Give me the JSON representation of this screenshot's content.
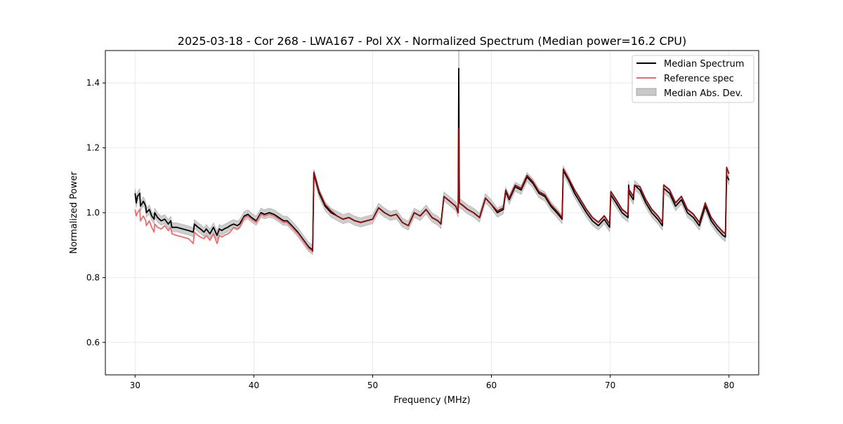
{
  "chart_data": {
    "type": "line",
    "title": "2025-03-18 - Cor 268 - LWA167 - Pol XX - Normalized Spectrum (Median power=16.2 CPU)",
    "xlabel": "Frequency (MHz)",
    "ylabel": "Normalized Power",
    "xlim": [
      27.5,
      82.5
    ],
    "ylim": [
      0.5,
      1.5
    ],
    "xticks": [
      30,
      40,
      50,
      60,
      70,
      80
    ],
    "xtick_labels": [
      "30",
      "40",
      "50",
      "60",
      "70",
      "80"
    ],
    "yticks": [
      0.6,
      0.8,
      1.0,
      1.2,
      1.4
    ],
    "ytick_labels": [
      "0.6",
      "0.8",
      "1.0",
      "1.2",
      "1.4"
    ],
    "grid": true,
    "legend_position": "top-right",
    "colors": {
      "median": "#000000",
      "reference": "#f26a6a",
      "mad": "#c8c8c8",
      "overlap": "#8b0d0d"
    },
    "series": [
      {
        "name": "Median Spectrum",
        "x": [
          30.0,
          30.1,
          30.2,
          30.4,
          30.45,
          30.7,
          30.9,
          30.95,
          31.2,
          31.4,
          31.6,
          31.65,
          31.9,
          32.2,
          32.5,
          32.8,
          33.0,
          33.1,
          33.5,
          34.0,
          34.5,
          34.9,
          35.0,
          35.3,
          35.5,
          35.8,
          36.0,
          36.3,
          36.6,
          36.9,
          37.1,
          37.3,
          37.5,
          37.8,
          38.0,
          38.3,
          38.6,
          38.8,
          39.2,
          39.5,
          39.8,
          40.2,
          40.6,
          40.9,
          41.3,
          41.7,
          42.1,
          42.5,
          42.8,
          43.2,
          43.7,
          44.2,
          44.6,
          44.95,
          45.05,
          45.5,
          46.0,
          46.5,
          47.0,
          47.5,
          48.0,
          48.5,
          49.0,
          49.5,
          50.0,
          50.5,
          51.0,
          51.5,
          52.0,
          52.5,
          53.0,
          53.5,
          54.0,
          54.5,
          55.0,
          55.5,
          55.75,
          56.0,
          56.5,
          57.0,
          57.2,
          57.25,
          57.3,
          57.5,
          58.0,
          58.5,
          59.0,
          59.5,
          60.0,
          60.5,
          61.0,
          61.2,
          61.5,
          62.0,
          62.5,
          63.0,
          63.5,
          64.0,
          64.5,
          65.0,
          65.5,
          65.95,
          66.05,
          66.5,
          67.0,
          67.5,
          68.0,
          68.5,
          69.0,
          69.5,
          69.95,
          70.05,
          70.5,
          71.0,
          71.5,
          71.55,
          71.6,
          71.95,
          72.05,
          72.5,
          73.0,
          73.5,
          74.0,
          74.4,
          74.5,
          75.0,
          75.5,
          76.0,
          76.5,
          77.0,
          77.5,
          78.0,
          78.5,
          79.0,
          79.5,
          79.7,
          79.8,
          80.0
        ],
        "values": [
          1.06,
          1.03,
          1.05,
          1.06,
          1.02,
          1.035,
          1.02,
          1.0,
          1.01,
          0.99,
          0.98,
          1.0,
          0.985,
          0.975,
          0.98,
          0.965,
          0.975,
          0.955,
          0.955,
          0.95,
          0.945,
          0.94,
          0.965,
          0.955,
          0.95,
          0.94,
          0.95,
          0.935,
          0.955,
          0.93,
          0.95,
          0.945,
          0.95,
          0.955,
          0.96,
          0.965,
          0.96,
          0.965,
          0.99,
          0.995,
          0.985,
          0.975,
          1.0,
          0.995,
          1.0,
          0.995,
          0.985,
          0.975,
          0.975,
          0.96,
          0.94,
          0.915,
          0.895,
          0.885,
          1.12,
          1.06,
          1.02,
          1.0,
          0.99,
          0.98,
          0.985,
          0.975,
          0.97,
          0.975,
          0.98,
          1.015,
          1.0,
          0.99,
          0.995,
          0.97,
          0.96,
          1.0,
          0.99,
          1.01,
          0.985,
          0.975,
          0.965,
          1.05,
          1.035,
          1.02,
          1.0,
          1.445,
          1.03,
          1.025,
          1.01,
          1.0,
          0.985,
          1.045,
          1.025,
          1.0,
          1.01,
          1.065,
          1.04,
          1.08,
          1.07,
          1.11,
          1.09,
          1.06,
          1.05,
          1.02,
          1.0,
          0.98,
          1.13,
          1.1,
          1.06,
          1.03,
          1.0,
          0.975,
          0.96,
          0.98,
          0.955,
          1.055,
          1.03,
          1.0,
          0.985,
          1.085,
          1.06,
          1.04,
          1.085,
          1.07,
          1.03,
          1.0,
          0.98,
          0.96,
          1.075,
          1.06,
          1.02,
          1.04,
          1.0,
          0.985,
          0.96,
          1.02,
          0.975,
          0.95,
          0.93,
          0.925,
          1.115,
          1.1
        ],
        "mad_width": 0.014
      },
      {
        "name": "Reference spec",
        "x": [
          30.0,
          30.1,
          30.2,
          30.4,
          30.45,
          30.7,
          30.9,
          30.95,
          31.2,
          31.4,
          31.6,
          31.65,
          31.9,
          32.2,
          32.5,
          32.8,
          33.0,
          33.1,
          33.5,
          34.0,
          34.5,
          34.9,
          35.0,
          35.3,
          35.5,
          35.8,
          36.0,
          36.3,
          36.6,
          36.9,
          37.1,
          37.3,
          37.5,
          37.8,
          38.0,
          38.3,
          38.6,
          38.8,
          39.2,
          39.5,
          39.8,
          40.2,
          40.6,
          40.9,
          41.3,
          41.7,
          42.1,
          42.5,
          42.8,
          43.2,
          43.7,
          44.2,
          44.6,
          44.95,
          45.05,
          45.5,
          46.0,
          46.5,
          47.0,
          47.5,
          48.0,
          48.5,
          49.0,
          49.5,
          50.0,
          50.5,
          51.0,
          51.5,
          52.0,
          52.5,
          53.0,
          53.5,
          54.0,
          54.5,
          55.0,
          55.5,
          55.75,
          56.0,
          56.5,
          57.0,
          57.2,
          57.25,
          57.3,
          57.5,
          58.0,
          58.5,
          59.0,
          59.5,
          60.0,
          60.5,
          61.0,
          61.2,
          61.5,
          62.0,
          62.5,
          63.0,
          63.5,
          64.0,
          64.5,
          65.0,
          65.5,
          65.95,
          66.05,
          66.5,
          67.0,
          67.5,
          68.0,
          68.5,
          69.0,
          69.5,
          69.95,
          70.05,
          70.5,
          71.0,
          71.5,
          71.55,
          71.6,
          71.95,
          72.05,
          72.5,
          73.0,
          73.5,
          74.0,
          74.4,
          74.5,
          75.0,
          75.5,
          76.0,
          76.5,
          77.0,
          77.5,
          78.0,
          78.5,
          79.0,
          79.5,
          79.7,
          79.8,
          80.0
        ],
        "values": [
          1.01,
          0.99,
          1.0,
          1.01,
          0.975,
          0.99,
          0.975,
          0.96,
          0.975,
          0.955,
          0.94,
          0.965,
          0.955,
          0.95,
          0.96,
          0.945,
          0.955,
          0.935,
          0.93,
          0.925,
          0.92,
          0.905,
          0.94,
          0.93,
          0.925,
          0.92,
          0.93,
          0.915,
          0.935,
          0.905,
          0.93,
          0.925,
          0.93,
          0.935,
          0.94,
          0.955,
          0.95,
          0.955,
          0.985,
          0.99,
          0.98,
          0.97,
          0.995,
          0.99,
          0.995,
          0.99,
          0.98,
          0.97,
          0.97,
          0.955,
          0.935,
          0.91,
          0.89,
          0.88,
          1.125,
          1.065,
          1.025,
          1.005,
          0.99,
          0.98,
          0.985,
          0.975,
          0.97,
          0.975,
          0.98,
          1.015,
          1.0,
          0.99,
          0.995,
          0.97,
          0.96,
          1.0,
          0.99,
          1.01,
          0.985,
          0.975,
          0.965,
          1.05,
          1.035,
          1.02,
          1.0,
          1.26,
          1.03,
          1.025,
          1.01,
          1.0,
          0.985,
          1.045,
          1.025,
          1.005,
          1.015,
          1.07,
          1.045,
          1.085,
          1.075,
          1.115,
          1.095,
          1.065,
          1.055,
          1.025,
          1.005,
          0.985,
          1.135,
          1.105,
          1.07,
          1.04,
          1.01,
          0.985,
          0.97,
          0.99,
          0.965,
          1.065,
          1.04,
          1.01,
          0.995,
          1.075,
          1.07,
          1.05,
          1.085,
          1.08,
          1.04,
          1.01,
          0.99,
          0.97,
          1.085,
          1.07,
          1.03,
          1.05,
          1.01,
          0.995,
          0.97,
          1.03,
          0.985,
          0.96,
          0.94,
          0.935,
          1.14,
          1.12
        ]
      }
    ]
  }
}
